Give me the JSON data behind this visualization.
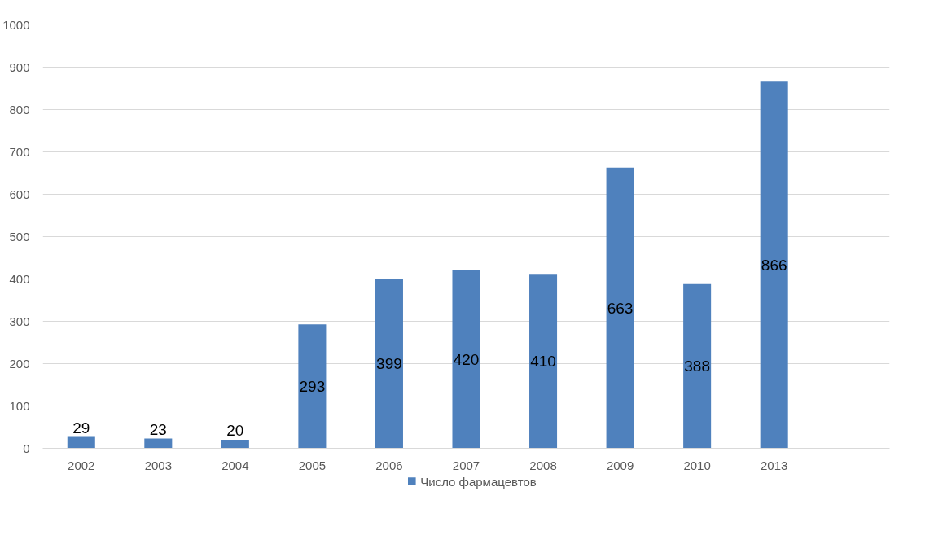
{
  "chart_data": {
    "type": "bar",
    "categories": [
      "2002",
      "2003",
      "2004",
      "2005",
      "2006",
      "2007",
      "2008",
      "2009",
      "2010",
      "2013",
      null
    ],
    "series": [
      {
        "name": "Число фармацевтов",
        "color": "#4f81bd",
        "values": [
          29,
          23,
          20,
          293,
          399,
          420,
          410,
          663,
          388,
          866,
          null
        ]
      }
    ],
    "ylim": [
      0,
      1000
    ],
    "yticks": [
      0,
      100,
      200,
      300,
      400,
      500,
      600,
      700,
      800,
      900,
      1000
    ],
    "grid": "y",
    "legend": "bottom",
    "data_labels": true
  }
}
